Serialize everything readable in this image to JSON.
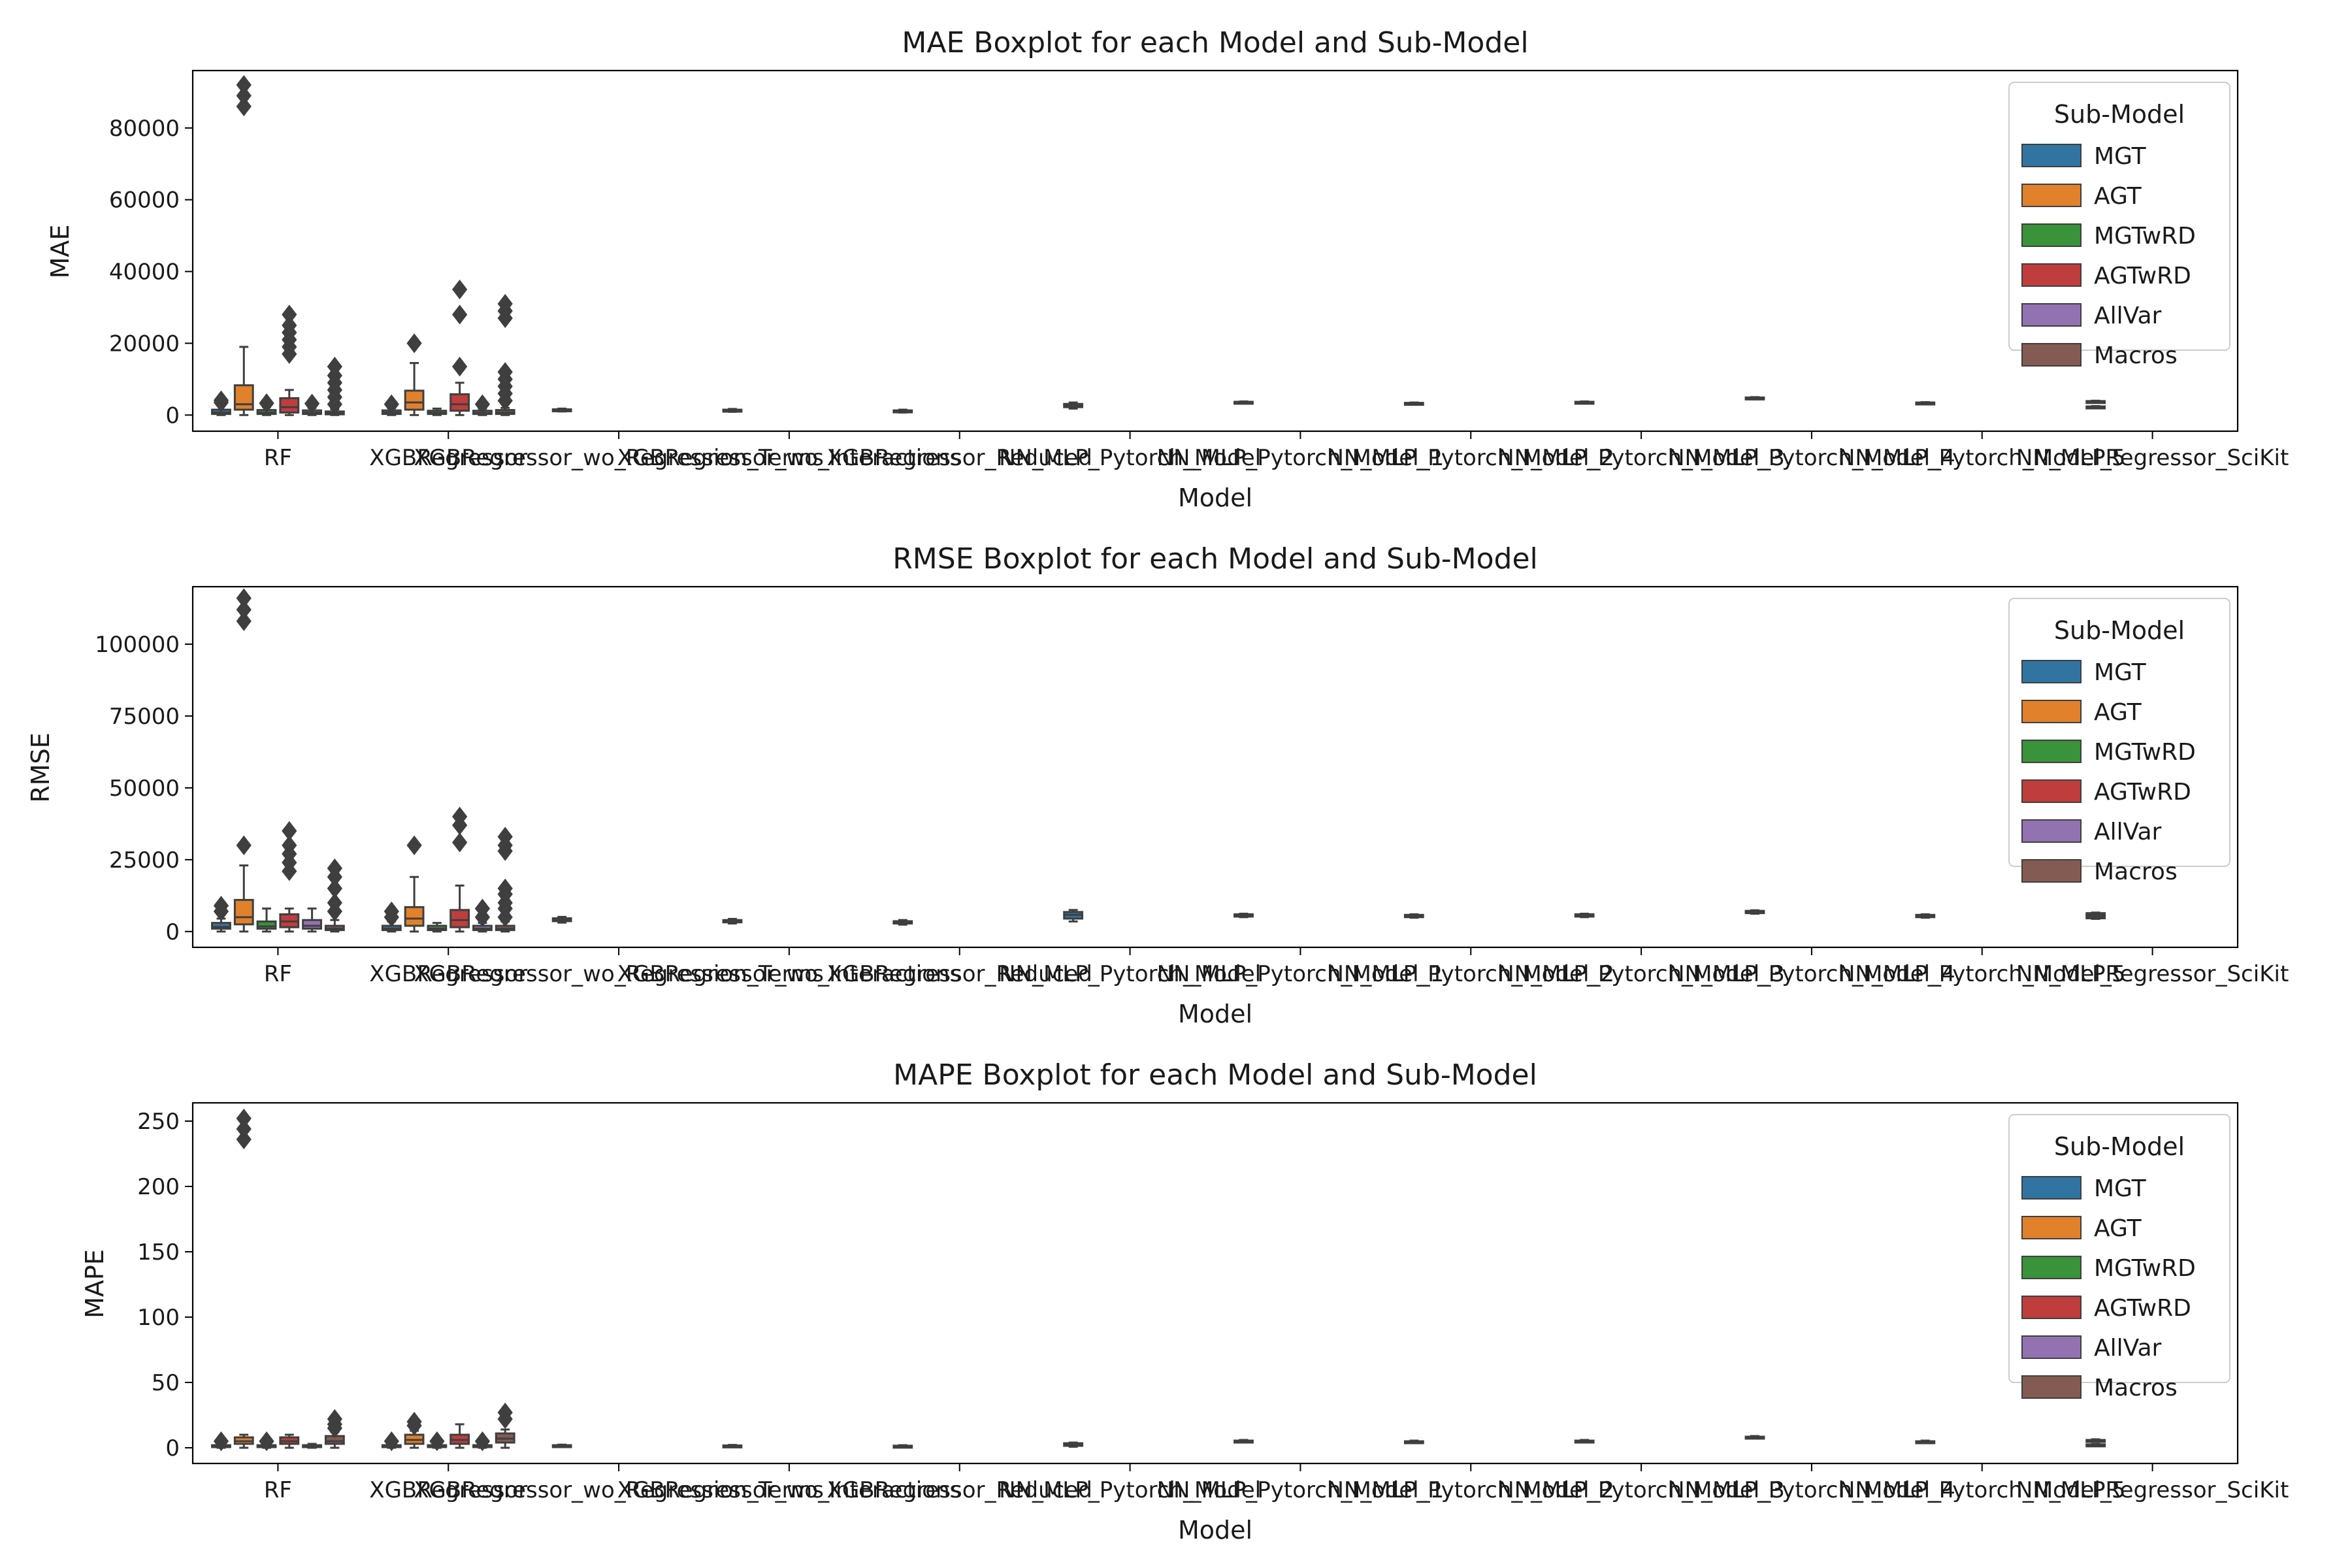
{
  "figure": {
    "models": [
      "RF",
      "XGBRegressor",
      "XGBRegressor_wo_Regression_Terms",
      "XGBRegressor_wo_Interactions",
      "XGBRegressor_Reduced",
      "NN_MLP_Pytorch_Model",
      "NN_MLP_Pytorch_Model_1",
      "NN_MLP_Pytorch_Model_2",
      "NN_MLP_Pytorch_Model_3",
      "NN_MLP_Pytorch_Model_4",
      "NN_MLP_Pytorch_Model_5",
      "NN_MLPRegressor_SciKit"
    ],
    "legend": {
      "title": "Sub-Model",
      "entries": [
        {
          "name": "MGT",
          "color": "#3274a1"
        },
        {
          "name": "AGT",
          "color": "#e1812c"
        },
        {
          "name": "MGTwRD",
          "color": "#3a923a"
        },
        {
          "name": "AGTwRD",
          "color": "#c03d3e"
        },
        {
          "name": "AllVar",
          "color": "#9372b2"
        },
        {
          "name": "Macros",
          "color": "#845b53"
        }
      ]
    }
  },
  "chart_data": [
    {
      "type": "box",
      "title": "MAE Boxplot for each Model and Sub-Model",
      "xlabel": "Model",
      "ylabel": "MAE",
      "ylim": [
        -4500,
        96000
      ],
      "yticks": [
        0,
        20000,
        40000,
        60000,
        80000
      ],
      "ytick_labels": [
        "0",
        "20000",
        "40000",
        "60000",
        "80000"
      ],
      "legend_position": "upper right",
      "boxes": [
        {
          "model": "RF",
          "sub": "MGT",
          "q1": 300,
          "median": 700,
          "q3": 1500,
          "lo": 0,
          "hi": 2600,
          "outliers": [
            3500,
            4100
          ]
        },
        {
          "model": "RF",
          "sub": "AGT",
          "q1": 1500,
          "median": 3000,
          "q3": 8300,
          "lo": 0,
          "hi": 19000,
          "outliers": [
            86000,
            89000,
            92000
          ]
        },
        {
          "model": "RF",
          "sub": "MGTwRD",
          "q1": 300,
          "median": 700,
          "q3": 1400,
          "lo": 0,
          "hi": 2200,
          "outliers": [
            3300
          ]
        },
        {
          "model": "RF",
          "sub": "AGTwRD",
          "q1": 700,
          "median": 2200,
          "q3": 4700,
          "lo": 0,
          "hi": 7000,
          "outliers": [
            17000,
            19000,
            21000,
            23000,
            25000,
            28000
          ]
        },
        {
          "model": "RF",
          "sub": "AllVar",
          "q1": 300,
          "median": 700,
          "q3": 1300,
          "lo": 0,
          "hi": 2000,
          "outliers": [
            3200
          ]
        },
        {
          "model": "RF",
          "sub": "Macros",
          "q1": 200,
          "median": 500,
          "q3": 1000,
          "lo": 0,
          "hi": 1600,
          "outliers": [
            3000,
            5000,
            7000,
            9000,
            11000,
            13500
          ]
        },
        {
          "model": "XGBRegressor",
          "sub": "MGT",
          "q1": 300,
          "median": 700,
          "q3": 1300,
          "lo": 0,
          "hi": 2000,
          "outliers": [
            3000
          ]
        },
        {
          "model": "XGBRegressor",
          "sub": "AGT",
          "q1": 1500,
          "median": 3500,
          "q3": 6800,
          "lo": 0,
          "hi": 14500,
          "outliers": [
            20000
          ]
        },
        {
          "model": "XGBRegressor",
          "sub": "MGTwRD",
          "q1": 300,
          "median": 600,
          "q3": 1200,
          "lo": 0,
          "hi": 1800,
          "outliers": []
        },
        {
          "model": "XGBRegressor",
          "sub": "AGTwRD",
          "q1": 1200,
          "median": 3000,
          "q3": 5800,
          "lo": 0,
          "hi": 9000,
          "outliers": [
            13500,
            28000,
            35000
          ]
        },
        {
          "model": "XGBRegressor",
          "sub": "AllVar",
          "q1": 300,
          "median": 600,
          "q3": 1200,
          "lo": 0,
          "hi": 1800,
          "outliers": [
            3000
          ]
        },
        {
          "model": "XGBRegressor",
          "sub": "Macros",
          "q1": 300,
          "median": 700,
          "q3": 1400,
          "lo": 0,
          "hi": 2000,
          "outliers": [
            4000,
            6000,
            8000,
            10000,
            12000,
            27000,
            29000,
            31000
          ]
        },
        {
          "model": "XGBRegressor_wo_Regression_Terms",
          "sub": "MGT",
          "q1": 1200,
          "median": 1400,
          "q3": 1600,
          "lo": 1000,
          "hi": 1800,
          "outliers": []
        },
        {
          "model": "XGBRegressor_wo_Interactions",
          "sub": "MGT",
          "q1": 1100,
          "median": 1300,
          "q3": 1500,
          "lo": 900,
          "hi": 1700,
          "outliers": []
        },
        {
          "model": "XGBRegressor_Reduced",
          "sub": "MGT",
          "q1": 900,
          "median": 1100,
          "q3": 1300,
          "lo": 700,
          "hi": 1500,
          "outliers": []
        },
        {
          "model": "NN_MLP_Pytorch_Model",
          "sub": "MGT",
          "q1": 2200,
          "median": 2700,
          "q3": 3100,
          "lo": 1800,
          "hi": 3500,
          "outliers": []
        },
        {
          "model": "NN_MLP_Pytorch_Model_1",
          "sub": "MGT",
          "q1": 3300,
          "median": 3500,
          "q3": 3700,
          "lo": 3200,
          "hi": 3800,
          "outliers": []
        },
        {
          "model": "NN_MLP_Pytorch_Model_2",
          "sub": "MGT",
          "q1": 3000,
          "median": 3200,
          "q3": 3400,
          "lo": 2900,
          "hi": 3500,
          "outliers": []
        },
        {
          "model": "NN_MLP_Pytorch_Model_3",
          "sub": "MGT",
          "q1": 3300,
          "median": 3500,
          "q3": 3700,
          "lo": 3200,
          "hi": 3800,
          "outliers": []
        },
        {
          "model": "NN_MLP_Pytorch_Model_4",
          "sub": "MGT",
          "q1": 4500,
          "median": 4700,
          "q3": 4900,
          "lo": 4400,
          "hi": 5000,
          "outliers": []
        },
        {
          "model": "NN_MLP_Pytorch_Model_5",
          "sub": "MGT",
          "q1": 3100,
          "median": 3300,
          "q3": 3500,
          "lo": 3000,
          "hi": 3600,
          "outliers": []
        },
        {
          "model": "NN_MLPRegressor_SciKit",
          "sub": "MGT",
          "q1": 3500,
          "median": 3700,
          "q3": 3900,
          "lo": 3400,
          "hi": 4000,
          "outliers": []
        },
        {
          "model": "NN_MLPRegressor_SciKit",
          "sub": "MGT",
          "q1": 2000,
          "median": 2200,
          "q3": 2400,
          "lo": 1900,
          "hi": 2500,
          "outliers": [],
          "slot": 12
        }
      ]
    },
    {
      "type": "box",
      "title": "RMSE Boxplot for each Model and Sub-Model",
      "xlabel": "Model",
      "ylabel": "RMSE",
      "ylim": [
        -5500,
        120000
      ],
      "yticks": [
        0,
        25000,
        50000,
        75000,
        100000
      ],
      "ytick_labels": [
        "0",
        "25000",
        "50000",
        "75000",
        "100000"
      ],
      "legend_position": "upper right",
      "boxes": [
        {
          "model": "RF",
          "sub": "MGT",
          "q1": 1000,
          "median": 1600,
          "q3": 3000,
          "lo": 0,
          "hi": 4500,
          "outliers": [
            7000,
            9000
          ]
        },
        {
          "model": "RF",
          "sub": "AGT",
          "q1": 2500,
          "median": 5000,
          "q3": 11000,
          "lo": 0,
          "hi": 23000,
          "outliers": [
            30000,
            108000,
            112000,
            116000
          ]
        },
        {
          "model": "RF",
          "sub": "MGTwRD",
          "q1": 1000,
          "median": 1800,
          "q3": 3500,
          "lo": 0,
          "hi": 8000,
          "outliers": []
        },
        {
          "model": "RF",
          "sub": "AGTwRD",
          "q1": 1500,
          "median": 3500,
          "q3": 6000,
          "lo": 0,
          "hi": 8000,
          "outliers": [
            21000,
            24000,
            27000,
            30000,
            35000
          ]
        },
        {
          "model": "RF",
          "sub": "AllVar",
          "q1": 1000,
          "median": 2000,
          "q3": 4000,
          "lo": 0,
          "hi": 8000,
          "outliers": []
        },
        {
          "model": "RF",
          "sub": "Macros",
          "q1": 500,
          "median": 1000,
          "q3": 2000,
          "lo": 0,
          "hi": 4000,
          "outliers": [
            7000,
            10000,
            15000,
            19000,
            22000
          ]
        },
        {
          "model": "XGBRegressor",
          "sub": "MGT",
          "q1": 500,
          "median": 1000,
          "q3": 2000,
          "lo": 0,
          "hi": 3500,
          "outliers": [
            5000,
            7000
          ]
        },
        {
          "model": "XGBRegressor",
          "sub": "AGT",
          "q1": 2000,
          "median": 4500,
          "q3": 8500,
          "lo": 0,
          "hi": 19000,
          "outliers": [
            30000
          ]
        },
        {
          "model": "XGBRegressor",
          "sub": "MGTwRD",
          "q1": 500,
          "median": 1000,
          "q3": 2000,
          "lo": 0,
          "hi": 3000,
          "outliers": []
        },
        {
          "model": "XGBRegressor",
          "sub": "AGTwRD",
          "q1": 1500,
          "median": 4000,
          "q3": 7500,
          "lo": 0,
          "hi": 16000,
          "outliers": [
            31000,
            37000,
            40000
          ]
        },
        {
          "model": "XGBRegressor",
          "sub": "AllVar",
          "q1": 500,
          "median": 1000,
          "q3": 2000,
          "lo": 0,
          "hi": 3000,
          "outliers": [
            5000,
            8000
          ]
        },
        {
          "model": "XGBRegressor",
          "sub": "Macros",
          "q1": 500,
          "median": 1000,
          "q3": 2000,
          "lo": 0,
          "hi": 3500,
          "outliers": [
            5000,
            8000,
            10000,
            13000,
            15000,
            28000,
            30000,
            33000
          ]
        },
        {
          "model": "XGBRegressor_wo_Regression_Terms",
          "sub": "MGT",
          "q1": 3600,
          "median": 4100,
          "q3": 4600,
          "lo": 3100,
          "hi": 5100,
          "outliers": []
        },
        {
          "model": "XGBRegressor_wo_Interactions",
          "sub": "MGT",
          "q1": 3200,
          "median": 3600,
          "q3": 4000,
          "lo": 2800,
          "hi": 4400,
          "outliers": []
        },
        {
          "model": "XGBRegressor_Reduced",
          "sub": "MGT",
          "q1": 2800,
          "median": 3200,
          "q3": 3600,
          "lo": 2400,
          "hi": 4000,
          "outliers": []
        },
        {
          "model": "NN_MLP_Pytorch_Model",
          "sub": "MGT",
          "q1": 4500,
          "median": 5800,
          "q3": 6800,
          "lo": 3500,
          "hi": 7500,
          "outliers": []
        },
        {
          "model": "NN_MLP_Pytorch_Model_1",
          "sub": "MGT",
          "q1": 5200,
          "median": 5600,
          "q3": 6000,
          "lo": 5000,
          "hi": 6200,
          "outliers": []
        },
        {
          "model": "NN_MLP_Pytorch_Model_2",
          "sub": "MGT",
          "q1": 5000,
          "median": 5400,
          "q3": 5800,
          "lo": 4800,
          "hi": 6000,
          "outliers": []
        },
        {
          "model": "NN_MLP_Pytorch_Model_3",
          "sub": "MGT",
          "q1": 5200,
          "median": 5600,
          "q3": 6000,
          "lo": 5000,
          "hi": 6200,
          "outliers": []
        },
        {
          "model": "NN_MLP_Pytorch_Model_4",
          "sub": "MGT",
          "q1": 6400,
          "median": 6800,
          "q3": 7200,
          "lo": 6200,
          "hi": 7400,
          "outliers": []
        },
        {
          "model": "NN_MLP_Pytorch_Model_5",
          "sub": "MGT",
          "q1": 5000,
          "median": 5400,
          "q3": 5800,
          "lo": 4800,
          "hi": 6000,
          "outliers": []
        },
        {
          "model": "NN_MLPRegressor_SciKit",
          "sub": "MGT",
          "q1": 5600,
          "median": 6000,
          "q3": 6400,
          "lo": 5400,
          "hi": 6600,
          "outliers": []
        },
        {
          "model": "NN_MLPRegressor_SciKit",
          "sub": "MGT",
          "q1": 4600,
          "median": 5000,
          "q3": 5400,
          "lo": 4400,
          "hi": 5600,
          "outliers": [],
          "slot": 12
        }
      ]
    },
    {
      "type": "box",
      "title": "MAPE Boxplot for each Model and Sub-Model",
      "xlabel": "Model",
      "ylabel": "MAPE",
      "ylim": [
        -12,
        264
      ],
      "yticks": [
        0,
        50,
        100,
        150,
        200,
        250
      ],
      "ytick_labels": [
        "0",
        "50",
        "100",
        "150",
        "200",
        "250"
      ],
      "legend_position": "upper right",
      "boxes": [
        {
          "model": "RF",
          "sub": "MGT",
          "q1": 0.5,
          "median": 1,
          "q3": 2,
          "lo": 0,
          "hi": 3,
          "outliers": [
            5
          ]
        },
        {
          "model": "RF",
          "sub": "AGT",
          "q1": 3,
          "median": 5,
          "q3": 8,
          "lo": 0,
          "hi": 10,
          "outliers": [
            236,
            244,
            252
          ]
        },
        {
          "model": "RF",
          "sub": "MGTwRD",
          "q1": 0.5,
          "median": 1,
          "q3": 2,
          "lo": 0,
          "hi": 3,
          "outliers": [
            5
          ]
        },
        {
          "model": "RF",
          "sub": "AGTwRD",
          "q1": 3,
          "median": 5,
          "q3": 8,
          "lo": 0,
          "hi": 10,
          "outliers": []
        },
        {
          "model": "RF",
          "sub": "AllVar",
          "q1": 0.5,
          "median": 1,
          "q3": 2,
          "lo": 0,
          "hi": 3,
          "outliers": []
        },
        {
          "model": "RF",
          "sub": "Macros",
          "q1": 3,
          "median": 5,
          "q3": 9,
          "lo": 0,
          "hi": 12,
          "outliers": [
            15,
            18,
            22
          ]
        },
        {
          "model": "XGBRegressor",
          "sub": "MGT",
          "q1": 0.5,
          "median": 1,
          "q3": 2,
          "lo": 0,
          "hi": 3,
          "outliers": [
            5
          ]
        },
        {
          "model": "XGBRegressor",
          "sub": "AGT",
          "q1": 3,
          "median": 6,
          "q3": 10,
          "lo": 0,
          "hi": 13,
          "outliers": [
            17,
            20
          ]
        },
        {
          "model": "XGBRegressor",
          "sub": "MGTwRD",
          "q1": 0.5,
          "median": 1,
          "q3": 2,
          "lo": 0,
          "hi": 3,
          "outliers": [
            5
          ]
        },
        {
          "model": "XGBRegressor",
          "sub": "AGTwRD",
          "q1": 3,
          "median": 6,
          "q3": 10,
          "lo": 0,
          "hi": 18,
          "outliers": []
        },
        {
          "model": "XGBRegressor",
          "sub": "AllVar",
          "q1": 0.5,
          "median": 1,
          "q3": 2,
          "lo": 0,
          "hi": 3,
          "outliers": [
            5
          ]
        },
        {
          "model": "XGBRegressor",
          "sub": "Macros",
          "q1": 4,
          "median": 7,
          "q3": 11,
          "lo": 0,
          "hi": 14,
          "outliers": [
            22,
            27
          ]
        },
        {
          "model": "XGBRegressor_wo_Regression_Terms",
          "sub": "MGT",
          "q1": 1.2,
          "median": 1.6,
          "q3": 2,
          "lo": 0.8,
          "hi": 2.4,
          "outliers": []
        },
        {
          "model": "XGBRegressor_wo_Interactions",
          "sub": "MGT",
          "q1": 1.2,
          "median": 1.5,
          "q3": 1.8,
          "lo": 0.8,
          "hi": 2.2,
          "outliers": []
        },
        {
          "model": "XGBRegressor_Reduced",
          "sub": "MGT",
          "q1": 1,
          "median": 1.3,
          "q3": 1.6,
          "lo": 0.6,
          "hi": 2,
          "outliers": []
        },
        {
          "model": "NN_MLP_Pytorch_Model",
          "sub": "MGT",
          "q1": 1.5,
          "median": 2.5,
          "q3": 3.5,
          "lo": 0.8,
          "hi": 4,
          "outliers": []
        },
        {
          "model": "NN_MLP_Pytorch_Model_1",
          "sub": "MGT",
          "q1": 4.5,
          "median": 5,
          "q3": 5.5,
          "lo": 4,
          "hi": 6,
          "outliers": []
        },
        {
          "model": "NN_MLP_Pytorch_Model_2",
          "sub": "MGT",
          "q1": 4,
          "median": 4.5,
          "q3": 5,
          "lo": 3.5,
          "hi": 5.5,
          "outliers": []
        },
        {
          "model": "NN_MLP_Pytorch_Model_3",
          "sub": "MGT",
          "q1": 4.5,
          "median": 5,
          "q3": 5.5,
          "lo": 4,
          "hi": 6,
          "outliers": []
        },
        {
          "model": "NN_MLP_Pytorch_Model_4",
          "sub": "MGT",
          "q1": 7.5,
          "median": 8,
          "q3": 8.5,
          "lo": 7,
          "hi": 9,
          "outliers": []
        },
        {
          "model": "NN_MLP_Pytorch_Model_5",
          "sub": "MGT",
          "q1": 4,
          "median": 4.5,
          "q3": 5,
          "lo": 3.5,
          "hi": 5.5,
          "outliers": []
        },
        {
          "model": "NN_MLPRegressor_SciKit",
          "sub": "MGT",
          "q1": 5,
          "median": 5.5,
          "q3": 6,
          "lo": 4.5,
          "hi": 6.5,
          "outliers": []
        },
        {
          "model": "NN_MLPRegressor_SciKit",
          "sub": "MGT",
          "q1": 2,
          "median": 2.3,
          "q3": 2.6,
          "lo": 1.7,
          "hi": 2.9,
          "outliers": [],
          "slot": 12
        }
      ]
    }
  ]
}
